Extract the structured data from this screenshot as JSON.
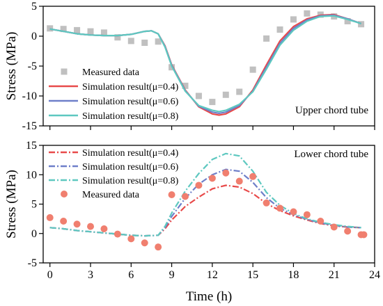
{
  "chart_data": [
    {
      "type": "line",
      "panel": "top",
      "annotation": "Upper chord tube",
      "xlabel": "",
      "ylabel": "Stress (MPa)",
      "xlim": [
        -0.5,
        24
      ],
      "ylim": [
        -15,
        5
      ],
      "xticks": [
        0,
        3,
        6,
        9,
        12,
        15,
        18,
        21,
        24
      ],
      "yticks": [
        -15,
        -10,
        -5,
        0,
        5
      ],
      "legend_position": "lower-left",
      "series": [
        {
          "name": "Measured data",
          "kind": "marker",
          "marker": "square",
          "color": "#c0c0c0",
          "x": [
            0,
            1,
            2,
            3,
            4,
            5,
            6,
            7,
            8,
            9,
            10,
            11,
            12,
            13,
            14,
            15,
            16,
            17,
            18,
            19,
            20,
            21,
            22,
            23
          ],
          "y": [
            1.3,
            1.2,
            1.0,
            0.8,
            0.6,
            -0.2,
            -0.8,
            -1.1,
            -0.9,
            -5.2,
            -8.3,
            -10.0,
            -11.0,
            -9.8,
            -9.3,
            -5.6,
            -0.4,
            1.1,
            2.8,
            3.8,
            3.6,
            3.3,
            2.5,
            2.0
          ]
        },
        {
          "name": "Simulation result(μ=0.4)",
          "kind": "line",
          "dash": "solid",
          "color": "#e84a4a",
          "x": [
            0,
            1,
            2,
            3,
            4,
            5,
            6,
            7,
            7.5,
            8,
            8.5,
            9,
            10,
            11,
            12,
            12.5,
            13,
            14,
            15,
            16,
            17,
            18,
            19,
            20,
            21,
            22,
            23
          ],
          "y": [
            1.2,
            0.8,
            0.4,
            0.2,
            0.1,
            0.1,
            0.3,
            0.8,
            0.9,
            0.4,
            -1.6,
            -4.8,
            -9.0,
            -11.8,
            -13.0,
            -13.2,
            -13.0,
            -11.8,
            -9.0,
            -4.8,
            -0.8,
            1.6,
            2.9,
            3.5,
            3.6,
            2.9,
            2.1
          ]
        },
        {
          "name": "Simulation result(μ=0.6)",
          "kind": "line",
          "dash": "solid",
          "color": "#6e7fc9",
          "x": [
            0,
            1,
            2,
            3,
            4,
            5,
            6,
            7,
            7.5,
            8,
            8.5,
            9,
            10,
            11,
            12,
            12.5,
            13,
            14,
            15,
            16,
            17,
            18,
            19,
            20,
            21,
            22,
            23
          ],
          "y": [
            1.2,
            0.8,
            0.4,
            0.2,
            0.1,
            0.1,
            0.3,
            0.8,
            0.9,
            0.4,
            -1.7,
            -4.9,
            -9.1,
            -11.7,
            -12.7,
            -12.9,
            -12.7,
            -11.6,
            -9.2,
            -5.2,
            -1.2,
            1.3,
            2.7,
            3.4,
            3.5,
            2.9,
            2.1
          ]
        },
        {
          "name": "Simulation result(μ=0.8)",
          "kind": "line",
          "dash": "solid",
          "color": "#5ec8c0",
          "x": [
            0,
            1,
            2,
            3,
            4,
            5,
            6,
            7,
            7.5,
            8,
            8.5,
            9,
            10,
            11,
            12,
            12.5,
            13,
            14,
            15,
            16,
            17,
            18,
            19,
            20,
            21,
            22,
            23
          ],
          "y": [
            1.2,
            0.8,
            0.4,
            0.2,
            0.1,
            0.1,
            0.3,
            0.8,
            0.9,
            0.4,
            -1.8,
            -5.0,
            -9.2,
            -11.6,
            -12.4,
            -12.6,
            -12.4,
            -11.4,
            -9.3,
            -5.5,
            -1.5,
            1.0,
            2.5,
            3.3,
            3.4,
            2.8,
            2.1
          ]
        }
      ]
    },
    {
      "type": "line",
      "panel": "bottom",
      "annotation": "Lower chord tube",
      "xlabel": "Time (h)",
      "ylabel": "Stress (MPa)",
      "xlim": [
        -0.5,
        24
      ],
      "ylim": [
        -5,
        15
      ],
      "xticks": [
        0,
        3,
        6,
        9,
        12,
        15,
        18,
        21,
        24
      ],
      "yticks": [
        -5,
        0,
        5,
        10,
        15
      ],
      "legend_position": "upper-left",
      "series": [
        {
          "name": "Simulation result(μ=0.4)",
          "kind": "line",
          "dash": "dashdot",
          "color": "#e84a4a",
          "x": [
            0,
            1,
            2,
            3,
            4,
            5,
            6,
            7,
            8,
            8.5,
            9,
            10,
            11,
            12,
            13,
            14,
            15,
            16,
            17,
            18,
            19,
            20,
            21,
            22,
            23
          ],
          "y": [
            1.0,
            0.8,
            0.5,
            0.3,
            0.1,
            -0.1,
            -0.3,
            -0.4,
            -0.3,
            0.8,
            2.3,
            4.6,
            6.2,
            7.6,
            8.2,
            7.9,
            6.8,
            5.1,
            3.9,
            3.0,
            2.3,
            1.7,
            1.3,
            1.1,
            1.0
          ]
        },
        {
          "name": "Simulation result(μ=0.6)",
          "kind": "line",
          "dash": "dashdot",
          "color": "#6e7fc9",
          "x": [
            0,
            1,
            2,
            3,
            4,
            5,
            6,
            7,
            8,
            8.5,
            9,
            10,
            11,
            12,
            13,
            14,
            15,
            16,
            17,
            18,
            19,
            20,
            21,
            22,
            23
          ],
          "y": [
            1.0,
            0.8,
            0.5,
            0.3,
            0.1,
            -0.1,
            -0.3,
            -0.4,
            -0.3,
            1.0,
            2.9,
            6.0,
            8.4,
            10.0,
            10.9,
            10.6,
            8.7,
            6.1,
            4.3,
            3.2,
            2.4,
            1.8,
            1.4,
            1.1,
            1.0
          ]
        },
        {
          "name": "Simulation result(μ=0.8)",
          "kind": "line",
          "dash": "dashdot",
          "color": "#5ec8c0",
          "x": [
            0,
            1,
            2,
            3,
            4,
            5,
            6,
            7,
            8,
            8.5,
            9,
            10,
            11,
            12,
            13,
            14,
            15,
            16,
            17,
            18,
            19,
            20,
            21,
            22,
            23
          ],
          "y": [
            1.0,
            0.8,
            0.5,
            0.3,
            0.1,
            -0.1,
            -0.3,
            -0.4,
            -0.3,
            1.2,
            3.5,
            7.2,
            10.2,
            12.6,
            13.6,
            13.2,
            10.6,
            7.0,
            4.8,
            3.4,
            2.5,
            1.9,
            1.5,
            1.2,
            1.0
          ]
        },
        {
          "name": "Measured data",
          "kind": "marker",
          "marker": "circle",
          "color": "#f07f6f",
          "x": [
            0,
            1,
            2,
            3,
            4,
            5,
            6,
            7,
            8,
            9,
            10,
            11,
            12,
            13,
            14,
            15,
            16,
            17,
            18,
            19,
            20,
            21,
            22,
            23,
            23.2
          ],
          "y": [
            2.7,
            2.1,
            1.6,
            1.2,
            0.8,
            -0.1,
            -0.9,
            -1.6,
            -2.3,
            6.6,
            6.3,
            8.2,
            9.4,
            10.3,
            8.9,
            9.7,
            5.2,
            4.3,
            3.7,
            3.2,
            2.1,
            1.1,
            0.4,
            -0.2,
            -0.2
          ]
        }
      ]
    }
  ]
}
